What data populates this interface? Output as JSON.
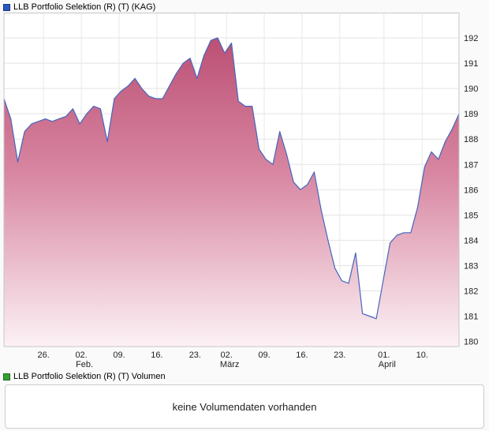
{
  "header": {
    "title": "LLB Portfolio Selektion (R) (T) (KAG)",
    "icon_color": "#2b56c6"
  },
  "volume": {
    "title": "LLB Portfolio Selektion (R) (T) Volumen",
    "icon_color": "#33a033",
    "message": "keine Volumendaten vorhanden"
  },
  "chart_data": {
    "type": "area",
    "title": "LLB Portfolio Selektion (R) (T) (KAG)",
    "xlabel": "",
    "ylabel": "",
    "ylim": [
      179.8,
      193.0
    ],
    "grid": true,
    "legend": "none",
    "line_color": "#4565be",
    "fill_stops": [
      [
        "0%",
        "#bb4f73"
      ],
      [
        "45%",
        "#d887a2"
      ],
      [
        "100%",
        "#fcf1f5"
      ]
    ],
    "y_ticks": [
      180,
      181,
      182,
      183,
      184,
      185,
      186,
      187,
      188,
      189,
      190,
      191,
      192
    ],
    "x_ticks": [
      {
        "label": "26.",
        "month": "",
        "f": 0.087
      },
      {
        "label": "02.",
        "month": "Feb.",
        "f": 0.17
      },
      {
        "label": "09.",
        "month": "",
        "f": 0.253
      },
      {
        "label": "16.",
        "month": "",
        "f": 0.336
      },
      {
        "label": "23.",
        "month": "",
        "f": 0.42
      },
      {
        "label": "02.",
        "month": "März",
        "f": 0.489
      },
      {
        "label": "09.",
        "month": "",
        "f": 0.572
      },
      {
        "label": "16.",
        "month": "",
        "f": 0.655
      },
      {
        "label": "23.",
        "month": "",
        "f": 0.738
      },
      {
        "label": "01.",
        "month": "April",
        "f": 0.835
      },
      {
        "label": "10.",
        "month": "",
        "f": 0.919
      }
    ],
    "values": [
      189.6,
      188.8,
      187.1,
      188.3,
      188.6,
      188.7,
      188.8,
      188.7,
      188.8,
      188.9,
      189.2,
      188.6,
      189.0,
      189.3,
      189.2,
      187.9,
      189.6,
      189.9,
      190.1,
      190.4,
      190.0,
      189.7,
      189.6,
      189.6,
      190.1,
      190.6,
      191.0,
      191.2,
      190.4,
      191.3,
      191.9,
      192.0,
      191.4,
      191.8,
      189.5,
      189.3,
      189.3,
      187.6,
      187.2,
      187.0,
      188.3,
      187.4,
      186.3,
      186.0,
      186.2,
      186.7,
      185.2,
      184.0,
      182.9,
      182.4,
      182.3,
      183.5,
      181.1,
      181.0,
      180.9,
      182.4,
      183.9,
      184.2,
      184.3,
      184.3,
      185.3,
      186.9,
      187.5,
      187.2,
      187.9,
      188.4,
      189.0
    ]
  }
}
